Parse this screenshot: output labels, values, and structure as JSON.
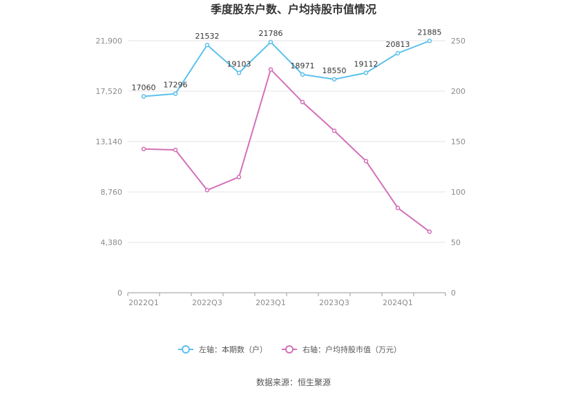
{
  "chart_data": {
    "type": "line",
    "title": "季度股东户数、户均持股市值情况",
    "x": [
      "2022Q1",
      "2022Q2",
      "2022Q3",
      "2022Q4",
      "2023Q1",
      "2023Q2",
      "2023Q3",
      "2023Q4",
      "2024Q1",
      "2024Q2"
    ],
    "x_tick_labels": [
      "2022Q1",
      "2022Q3",
      "2023Q1",
      "2023Q3",
      "2024Q1"
    ],
    "y_left": {
      "ticks": [
        "0",
        "4,380",
        "8,760",
        "13,140",
        "17,520",
        "21,900"
      ],
      "ylim": [
        0,
        21900
      ]
    },
    "y_right": {
      "ticks": [
        "0",
        "50",
        "100",
        "150",
        "200",
        "250"
      ],
      "ylim": [
        0,
        250
      ]
    },
    "grid": true,
    "legend_position": "bottom",
    "series": [
      {
        "name": "左轴：本期数（户）",
        "axis": "left",
        "color": "#5bc0eb",
        "values": [
          17060,
          17296,
          21532,
          19103,
          21786,
          18971,
          18550,
          19112,
          20813,
          21885
        ],
        "labels": [
          "17060",
          "17296",
          "21532",
          "19103",
          "21786",
          "18971",
          "18550",
          "19112",
          "20813",
          "21885"
        ]
      },
      {
        "name": "右轴：户均持股市值（万元）",
        "axis": "right",
        "color": "#d36fb8",
        "values": [
          142.6,
          141.7,
          101.8,
          114.8,
          221.5,
          189.2,
          160.7,
          130.6,
          84.2,
          60.6
        ]
      }
    ],
    "source": "数据来源：恒生聚源"
  }
}
